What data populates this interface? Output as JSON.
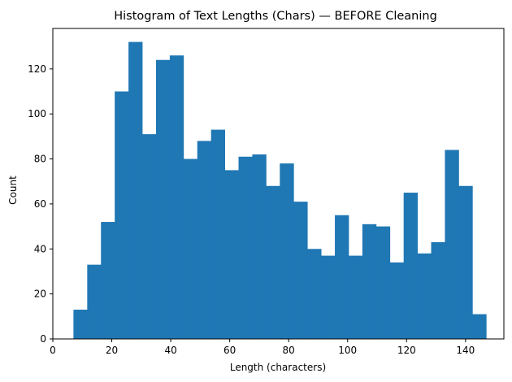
{
  "chart_data": {
    "type": "bar",
    "subtype": "histogram",
    "title": "Histogram of Text Lengths (Chars) — BEFORE Cleaning",
    "xlabel": "Length (characters)",
    "ylabel": "Count",
    "xlim": [
      0,
      153
    ],
    "ylim": [
      0,
      138
    ],
    "xticks": [
      0,
      20,
      40,
      60,
      80,
      100,
      120,
      140
    ],
    "yticks": [
      0,
      20,
      40,
      60,
      80,
      100,
      120
    ],
    "grid": false,
    "legend": "none",
    "bar_color": "#1f77b4",
    "bin_start": 7,
    "bin_end": 147,
    "bins": [
      {
        "x0": 7.0,
        "x1": 11.67,
        "count": 13
      },
      {
        "x0": 11.67,
        "x1": 16.33,
        "count": 33
      },
      {
        "x0": 16.33,
        "x1": 21.0,
        "count": 52
      },
      {
        "x0": 21.0,
        "x1": 25.67,
        "count": 110
      },
      {
        "x0": 25.67,
        "x1": 30.33,
        "count": 132
      },
      {
        "x0": 30.33,
        "x1": 35.0,
        "count": 91
      },
      {
        "x0": 35.0,
        "x1": 39.67,
        "count": 124
      },
      {
        "x0": 39.67,
        "x1": 44.33,
        "count": 126
      },
      {
        "x0": 44.33,
        "x1": 49.0,
        "count": 80
      },
      {
        "x0": 49.0,
        "x1": 53.67,
        "count": 88
      },
      {
        "x0": 53.67,
        "x1": 58.33,
        "count": 93
      },
      {
        "x0": 58.33,
        "x1": 63.0,
        "count": 75
      },
      {
        "x0": 63.0,
        "x1": 67.67,
        "count": 81
      },
      {
        "x0": 67.67,
        "x1": 72.33,
        "count": 82
      },
      {
        "x0": 72.33,
        "x1": 77.0,
        "count": 68
      },
      {
        "x0": 77.0,
        "x1": 81.67,
        "count": 78
      },
      {
        "x0": 81.67,
        "x1": 86.33,
        "count": 61
      },
      {
        "x0": 86.33,
        "x1": 91.0,
        "count": 40
      },
      {
        "x0": 91.0,
        "x1": 95.67,
        "count": 37
      },
      {
        "x0": 95.67,
        "x1": 100.33,
        "count": 55
      },
      {
        "x0": 100.33,
        "x1": 105.0,
        "count": 37
      },
      {
        "x0": 105.0,
        "x1": 109.67,
        "count": 51
      },
      {
        "x0": 109.67,
        "x1": 114.33,
        "count": 50
      },
      {
        "x0": 114.33,
        "x1": 119.0,
        "count": 34
      },
      {
        "x0": 119.0,
        "x1": 123.67,
        "count": 65
      },
      {
        "x0": 123.67,
        "x1": 128.33,
        "count": 38
      },
      {
        "x0": 128.33,
        "x1": 133.0,
        "count": 43
      },
      {
        "x0": 133.0,
        "x1": 137.67,
        "count": 84
      },
      {
        "x0": 137.67,
        "x1": 142.33,
        "count": 68
      },
      {
        "x0": 142.33,
        "x1": 147.0,
        "count": 11
      }
    ]
  }
}
